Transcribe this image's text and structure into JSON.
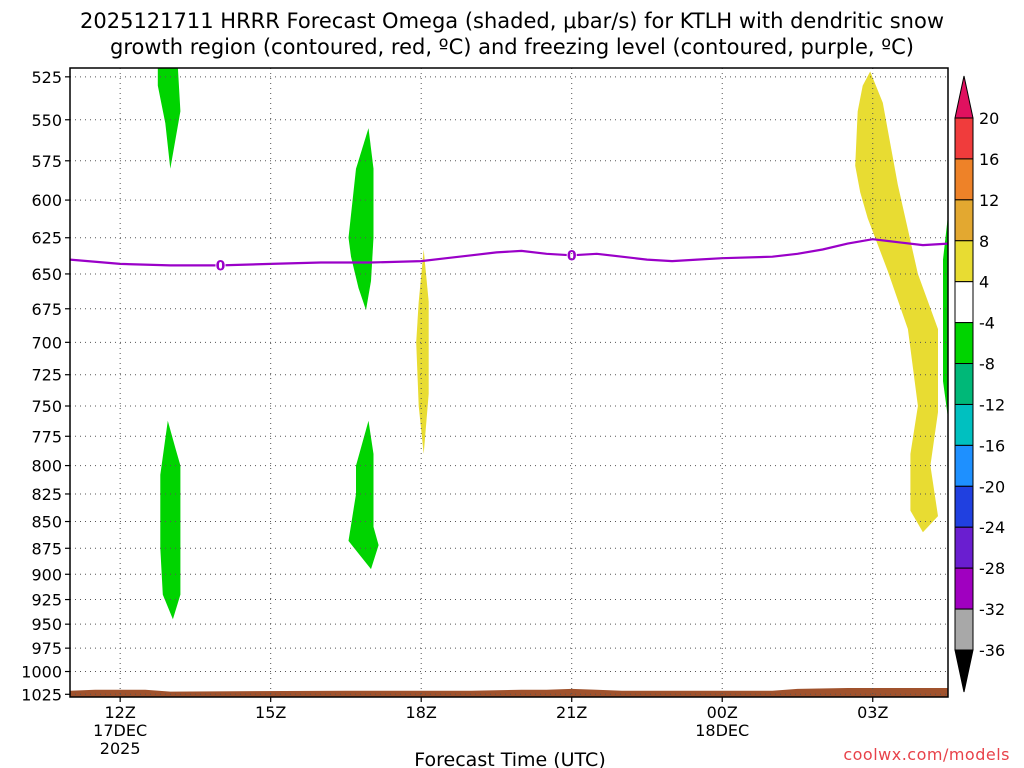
{
  "title_line1": "2025121711 HRRR Forecast Omega (shaded, μbar/s) for KTLH with dendritic snow",
  "title_line2": "growth region (contoured, red, ºC) and freezing level (contoured, purple, ºC)",
  "credit": "coolwx.com/models",
  "chart_data": {
    "type": "area",
    "xlabel": "Forecast Time (UTC)",
    "ylabel": "",
    "x_range_hours": [
      11,
      28.5
    ],
    "y_range_mb": [
      520,
      1028
    ],
    "y_scale": "log-pressure",
    "grid": true,
    "x_ticks": [
      {
        "hour": 12,
        "label": "12Z",
        "sub": [
          "17DEC",
          "2025"
        ]
      },
      {
        "hour": 15,
        "label": "15Z",
        "sub": []
      },
      {
        "hour": 18,
        "label": "18Z",
        "sub": []
      },
      {
        "hour": 21,
        "label": "21Z",
        "sub": []
      },
      {
        "hour": 24,
        "label": "00Z",
        "sub": [
          "18DEC"
        ]
      },
      {
        "hour": 27,
        "label": "03Z",
        "sub": []
      }
    ],
    "y_ticks": [
      525,
      550,
      575,
      600,
      625,
      650,
      675,
      700,
      725,
      750,
      775,
      800,
      825,
      850,
      875,
      900,
      925,
      950,
      975,
      1000,
      1025
    ],
    "omega_regions": [
      {
        "category": "-8 to -4",
        "color": "#00d400",
        "points": [
          [
            12.75,
            520
          ],
          [
            13.15,
            520
          ],
          [
            13.2,
            545
          ],
          [
            13.0,
            580
          ],
          [
            12.9,
            552
          ],
          [
            12.75,
            530
          ]
        ]
      },
      {
        "category": "-8 to -4",
        "color": "#00d400",
        "points": [
          [
            16.55,
            625
          ],
          [
            16.7,
            580
          ],
          [
            16.95,
            555
          ],
          [
            17.05,
            580
          ],
          [
            17.05,
            625
          ],
          [
            17.0,
            655
          ],
          [
            16.9,
            676
          ],
          [
            16.75,
            660
          ],
          [
            16.6,
            638
          ]
        ]
      },
      {
        "category": "4 to 8",
        "color": "#e8dc32",
        "points": [
          [
            17.95,
            670
          ],
          [
            18.05,
            633
          ],
          [
            18.15,
            670
          ],
          [
            18.15,
            740
          ],
          [
            18.05,
            790
          ],
          [
            17.95,
            750
          ],
          [
            17.9,
            700
          ]
        ]
      },
      {
        "category": "-8 to -4",
        "color": "#00d400",
        "points": [
          [
            12.8,
            808
          ],
          [
            12.95,
            762
          ],
          [
            13.1,
            785
          ],
          [
            13.2,
            800
          ],
          [
            13.2,
            850
          ],
          [
            13.2,
            920
          ],
          [
            13.05,
            945
          ],
          [
            12.85,
            920
          ],
          [
            12.8,
            875
          ]
        ]
      },
      {
        "category": "-8 to -4",
        "color": "#00d400",
        "points": [
          [
            16.7,
            800
          ],
          [
            16.95,
            762
          ],
          [
            17.05,
            790
          ],
          [
            17.05,
            855
          ],
          [
            17.15,
            872
          ],
          [
            17.0,
            895
          ],
          [
            16.75,
            880
          ],
          [
            16.55,
            868
          ],
          [
            16.7,
            825
          ]
        ]
      },
      {
        "category": "4 to 8",
        "color": "#e8dc32",
        "points": [
          [
            26.65,
            578
          ],
          [
            26.7,
            545
          ],
          [
            26.8,
            530
          ],
          [
            26.95,
            522
          ],
          [
            27.2,
            540
          ],
          [
            27.5,
            590
          ],
          [
            27.9,
            650
          ],
          [
            28.3,
            690
          ],
          [
            28.3,
            755
          ],
          [
            28.15,
            800
          ],
          [
            28.3,
            845
          ],
          [
            28.0,
            860
          ],
          [
            27.75,
            840
          ],
          [
            27.75,
            790
          ],
          [
            27.9,
            750
          ],
          [
            27.7,
            690
          ],
          [
            27.3,
            648
          ],
          [
            26.9,
            612
          ],
          [
            26.75,
            595
          ]
        ]
      },
      {
        "category": "-8 to -4",
        "color": "#00d400",
        "points": [
          [
            28.4,
            640
          ],
          [
            28.5,
            610
          ],
          [
            28.5,
            760
          ],
          [
            28.4,
            730
          ]
        ]
      }
    ],
    "freezing_level_0C": {
      "label": "0",
      "x": [
        11,
        12,
        13,
        14,
        15,
        16,
        17,
        18,
        18.5,
        19,
        19.5,
        20,
        20.5,
        21,
        21.5,
        22,
        22.5,
        23,
        23.5,
        24,
        25,
        25.5,
        26,
        26.5,
        27,
        27.5,
        28,
        28.5
      ],
      "y": [
        640,
        643,
        644,
        644,
        643,
        642,
        642,
        641,
        639,
        637,
        635,
        634,
        636,
        637,
        636,
        638,
        640,
        641,
        640,
        639,
        638,
        636,
        633,
        629,
        626,
        628,
        630,
        629
      ],
      "label_at_hours": [
        14,
        21
      ]
    },
    "terrain_top_mb": {
      "x": [
        11,
        11.5,
        12.5,
        13,
        16.5,
        19,
        20,
        20.5,
        21,
        21.5,
        22,
        25,
        25.5,
        26.5,
        28.5
      ],
      "y": [
        1021,
        1020,
        1020,
        1022,
        1021,
        1021,
        1020,
        1020,
        1019,
        1020,
        1021,
        1021,
        1019,
        1018,
        1018
      ]
    },
    "terrain_color": "#a0522d",
    "colorbar": {
      "bins": [
        {
          "from": 20,
          "to": 24,
          "color": "#e0115f",
          "end": "top-arrow"
        },
        {
          "from": 16,
          "to": 20,
          "color": "#f03c3c"
        },
        {
          "from": 12,
          "to": 16,
          "color": "#ee8228"
        },
        {
          "from": 8,
          "to": 12,
          "color": "#e3a830"
        },
        {
          "from": 4,
          "to": 8,
          "color": "#e8dc32"
        },
        {
          "from": -4,
          "to": 4,
          "color": "#ffffff"
        },
        {
          "from": -8,
          "to": -4,
          "color": "#00d400"
        },
        {
          "from": -12,
          "to": -8,
          "color": "#00b878"
        },
        {
          "from": -16,
          "to": -12,
          "color": "#00c0c0"
        },
        {
          "from": -20,
          "to": -16,
          "color": "#1e90ff"
        },
        {
          "from": -24,
          "to": -20,
          "color": "#2040e0"
        },
        {
          "from": -28,
          "to": -24,
          "color": "#6a1ed0"
        },
        {
          "from": -32,
          "to": -28,
          "color": "#a000c0"
        },
        {
          "from": -36,
          "to": -32,
          "color": "#a8a8a8"
        },
        {
          "from": -40,
          "to": -36,
          "color": "#000000",
          "end": "bottom-arrow"
        }
      ],
      "labels": [
        "20",
        "16",
        "12",
        "8",
        "4",
        "-4",
        "-8",
        "-12",
        "-16",
        "-20",
        "-24",
        "-28",
        "-32",
        "-36"
      ]
    },
    "colors": {
      "freezing_line": "#9a00c8",
      "grid": "#555555",
      "frame": "#000000"
    }
  }
}
